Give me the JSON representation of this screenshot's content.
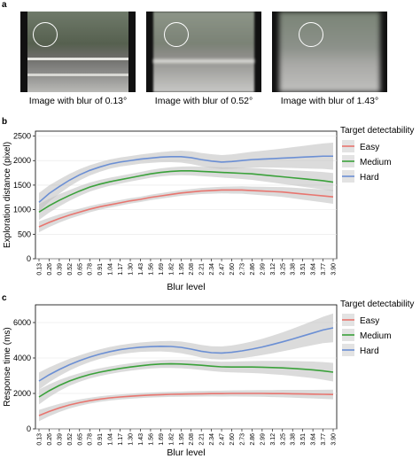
{
  "panel_labels": {
    "a": "a",
    "b": "b",
    "c": "c"
  },
  "images": [
    {
      "caption": "Image with blur of 0.13°",
      "blur_deg": 0.13
    },
    {
      "caption": "Image with blur of 0.52°",
      "blur_deg": 0.52
    },
    {
      "caption": "Image with blur of 1.43°",
      "blur_deg": 1.43
    }
  ],
  "colors": {
    "easy": "#e8756f",
    "medium": "#3aa13a",
    "hard": "#6b8fd4",
    "band": "#bdbdbd"
  },
  "chart_data": [
    {
      "type": "line",
      "xlabel": "Blur level",
      "ylabel": "Exploration distance (pixel)",
      "legend_title": "Target detectability",
      "legend_position": "right",
      "categories": [
        "0.13",
        "0.26",
        "0.39",
        "0.52",
        "0.65",
        "0.78",
        "0.91",
        "1.04",
        "1.17",
        "1.30",
        "1.43",
        "1.56",
        "1.69",
        "1.82",
        "1.95",
        "2.08",
        "2.21",
        "2.34",
        "2.47",
        "2.60",
        "2.73",
        "2.86",
        "2.99",
        "3.12",
        "3.25",
        "3.38",
        "3.51",
        "3.64",
        "3.77",
        "3.90"
      ],
      "ylim": [
        0,
        2600
      ],
      "yticks": [
        "0",
        "500",
        "1000",
        "1500",
        "2000",
        "2500"
      ],
      "grid": true,
      "series": [
        {
          "name": "Easy",
          "color_key": "easy",
          "values": [
            650,
            740,
            820,
            890,
            950,
            1010,
            1060,
            1100,
            1140,
            1180,
            1210,
            1250,
            1280,
            1310,
            1340,
            1360,
            1380,
            1390,
            1400,
            1400,
            1400,
            1390,
            1380,
            1370,
            1360,
            1340,
            1320,
            1300,
            1280,
            1260
          ],
          "se": [
            110,
            95,
            85,
            75,
            70,
            65,
            60,
            58,
            56,
            55,
            55,
            55,
            56,
            57,
            58,
            60,
            62,
            65,
            68,
            72,
            76,
            80,
            86,
            92,
            100,
            108,
            116,
            124,
            132,
            140
          ]
        },
        {
          "name": "Medium",
          "color_key": "medium",
          "values": [
            950,
            1080,
            1190,
            1290,
            1380,
            1460,
            1520,
            1570,
            1610,
            1650,
            1690,
            1730,
            1760,
            1780,
            1790,
            1790,
            1780,
            1770,
            1760,
            1750,
            1740,
            1730,
            1710,
            1690,
            1670,
            1650,
            1630,
            1610,
            1590,
            1560
          ],
          "se": [
            160,
            140,
            125,
            110,
            100,
            92,
            86,
            82,
            80,
            78,
            78,
            80,
            82,
            85,
            88,
            92,
            96,
            100,
            105,
            110,
            116,
            122,
            130,
            138,
            146,
            154,
            162,
            170,
            178,
            186
          ]
        },
        {
          "name": "Hard",
          "color_key": "hard",
          "values": [
            1150,
            1330,
            1470,
            1600,
            1710,
            1800,
            1870,
            1930,
            1970,
            2000,
            2030,
            2050,
            2070,
            2080,
            2080,
            2060,
            2020,
            1990,
            1970,
            1980,
            2000,
            2020,
            2030,
            2040,
            2050,
            2060,
            2070,
            2080,
            2090,
            2090
          ],
          "se": [
            190,
            165,
            145,
            128,
            115,
            105,
            98,
            94,
            92,
            92,
            94,
            98,
            104,
            112,
            122,
            130,
            136,
            140,
            142,
            146,
            152,
            160,
            170,
            182,
            196,
            212,
            228,
            244,
            260,
            276
          ]
        }
      ]
    },
    {
      "type": "line",
      "xlabel": "Blur level",
      "ylabel": "Response time (ms)",
      "legend_title": "Target detectability",
      "legend_position": "right",
      "categories": [
        "0.13",
        "0.26",
        "0.39",
        "0.52",
        "0.65",
        "0.78",
        "0.91",
        "1.04",
        "1.17",
        "1.30",
        "1.43",
        "1.56",
        "1.69",
        "1.82",
        "1.95",
        "2.08",
        "2.21",
        "2.34",
        "2.47",
        "2.60",
        "2.73",
        "2.86",
        "2.99",
        "3.12",
        "3.25",
        "3.38",
        "3.51",
        "3.64",
        "3.77",
        "3.90"
      ],
      "ylim": [
        0,
        7000
      ],
      "yticks": [
        "0",
        "2000",
        "4000",
        "6000"
      ],
      "grid": true,
      "series": [
        {
          "name": "Easy",
          "color_key": "easy",
          "values": [
            750,
            980,
            1180,
            1350,
            1480,
            1590,
            1680,
            1750,
            1800,
            1840,
            1880,
            1910,
            1930,
            1950,
            1960,
            1970,
            1980,
            1990,
            1990,
            2000,
            2000,
            2000,
            2000,
            1990,
            1990,
            1980,
            1970,
            1960,
            1950,
            1940
          ],
          "se": [
            320,
            270,
            230,
            200,
            180,
            165,
            155,
            150,
            145,
            143,
            142,
            142,
            143,
            145,
            148,
            152,
            156,
            160,
            165,
            170,
            176,
            182,
            190,
            198,
            208,
            218,
            230,
            242,
            256,
            270
          ]
        },
        {
          "name": "Medium",
          "color_key": "medium",
          "values": [
            1800,
            2150,
            2450,
            2700,
            2900,
            3070,
            3200,
            3310,
            3410,
            3490,
            3560,
            3620,
            3660,
            3670,
            3660,
            3630,
            3590,
            3540,
            3500,
            3490,
            3490,
            3490,
            3480,
            3460,
            3440,
            3410,
            3370,
            3330,
            3270,
            3200
          ],
          "se": [
            420,
            360,
            310,
            270,
            245,
            228,
            218,
            212,
            210,
            210,
            212,
            216,
            222,
            230,
            240,
            250,
            262,
            275,
            290,
            305,
            320,
            338,
            356,
            376,
            398,
            420,
            444,
            470,
            498,
            526
          ]
        },
        {
          "name": "Hard",
          "color_key": "hard",
          "values": [
            2700,
            3050,
            3350,
            3620,
            3850,
            4050,
            4220,
            4360,
            4470,
            4550,
            4610,
            4640,
            4660,
            4650,
            4600,
            4500,
            4380,
            4300,
            4280,
            4320,
            4400,
            4500,
            4620,
            4760,
            4910,
            5070,
            5240,
            5410,
            5580,
            5700
          ],
          "se": [
            480,
            420,
            370,
            330,
            300,
            280,
            268,
            262,
            260,
            262,
            268,
            278,
            292,
            310,
            330,
            345,
            355,
            362,
            370,
            385,
            405,
            430,
            460,
            495,
            535,
            580,
            630,
            685,
            745,
            810
          ]
        }
      ]
    }
  ]
}
